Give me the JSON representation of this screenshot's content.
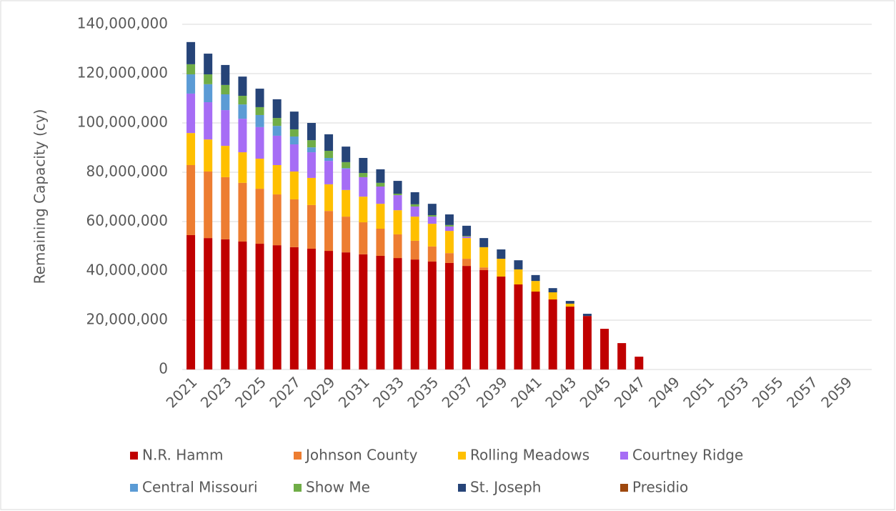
{
  "chart_data": {
    "type": "stacked_bar",
    "y_label": "Remaining Capacity (cy)",
    "categories": [
      "2021",
      null,
      "2023",
      null,
      "2025",
      null,
      "2027",
      null,
      "2029",
      null,
      "2031",
      null,
      "2033",
      null,
      "2035",
      null,
      "2037",
      null,
      "2039",
      null,
      "2041",
      null,
      "2043",
      null,
      "2045",
      null,
      "2047",
      null,
      "2049",
      null,
      "2051",
      null,
      "2053",
      null,
      "2055",
      null,
      "2057",
      null,
      "2059",
      null
    ],
    "series": [
      {
        "name": "N.R. Hamm",
        "color": "#c00000",
        "values": [
          54500000,
          53300000,
          52800000,
          51900000,
          51000000,
          50400000,
          49600000,
          49000000,
          48100000,
          47500000,
          46700000,
          46100000,
          45200000,
          44600000,
          43800000,
          43200000,
          42000000,
          40300000,
          37700000,
          34500000,
          31600000,
          28400000,
          25500000,
          21700000,
          16500000,
          10700000,
          5200000,
          0,
          0,
          0,
          0,
          0,
          0,
          0,
          0,
          0,
          0,
          0,
          0,
          0
        ]
      },
      {
        "name": "Johnson County",
        "color": "#ed7d31",
        "values": [
          28400000,
          27000000,
          25200000,
          23800000,
          22300000,
          20600000,
          19400000,
          17700000,
          16200000,
          14500000,
          13000000,
          11000000,
          9600000,
          7600000,
          6100000,
          4000000,
          2900000,
          1100000,
          0,
          0,
          0,
          0,
          0,
          0,
          0,
          0,
          0,
          0,
          0,
          0,
          0,
          0,
          0,
          0,
          0,
          0,
          0,
          0,
          0,
          0
        ]
      },
      {
        "name": "Rolling Meadows",
        "color": "#ffc000",
        "values": [
          13000000,
          13000000,
          12700000,
          12400000,
          12200000,
          11900000,
          11300000,
          11000000,
          10800000,
          10800000,
          10400000,
          10100000,
          9800000,
          9800000,
          9200000,
          9000000,
          8400000,
          8200000,
          7200000,
          6100000,
          4300000,
          2900000,
          1200000,
          0,
          0,
          0,
          0,
          0,
          0,
          0,
          0,
          0,
          0,
          0,
          0,
          0,
          0,
          0,
          0,
          0
        ]
      },
      {
        "name": "Courtney Ridge",
        "color": "#a66df5",
        "values": [
          16000000,
          15100000,
          14500000,
          13600000,
          12800000,
          11900000,
          11000000,
          10400000,
          9500000,
          8600000,
          7900000,
          7000000,
          6100000,
          4100000,
          2900000,
          1800000,
          600000,
          0,
          0,
          0,
          0,
          0,
          0,
          0,
          0,
          0,
          0,
          0,
          0,
          0,
          0,
          0,
          0,
          0,
          0,
          0,
          0,
          0,
          0,
          0
        ]
      },
      {
        "name": "Central Missouri",
        "color": "#5b9bd5",
        "values": [
          7800000,
          7300000,
          6400000,
          5800000,
          4900000,
          4000000,
          3200000,
          2000000,
          1200000,
          300000,
          0,
          0,
          0,
          0,
          0,
          0,
          0,
          0,
          0,
          0,
          0,
          0,
          0,
          0,
          0,
          0,
          0,
          0,
          0,
          0,
          0,
          0,
          0,
          0,
          0,
          0,
          0,
          0,
          0,
          0
        ]
      },
      {
        "name": "Show Me",
        "color": "#70ad47",
        "values": [
          4100000,
          4000000,
          3800000,
          3500000,
          3200000,
          3200000,
          2900000,
          2900000,
          2900000,
          2400000,
          1700000,
          1500000,
          600000,
          900000,
          600000,
          600000,
          300000,
          0,
          0,
          0,
          0,
          0,
          0,
          0,
          0,
          0,
          0,
          0,
          0,
          0,
          0,
          0,
          0,
          0,
          0,
          0,
          0,
          0,
          0,
          0
        ]
      },
      {
        "name": "St. Joseph",
        "color": "#264478",
        "values": [
          9000000,
          8400000,
          8100000,
          7800000,
          7500000,
          7600000,
          7200000,
          7000000,
          6700000,
          6300000,
          6100000,
          5500000,
          5200000,
          4900000,
          4600000,
          4300000,
          4100000,
          3700000,
          3800000,
          3700000,
          2400000,
          1700000,
          1100000,
          900000,
          0,
          0,
          0,
          0,
          0,
          0,
          0,
          0,
          0,
          0,
          0,
          0,
          0,
          0,
          0,
          0
        ]
      },
      {
        "name": "Presidio",
        "color": "#9e480e",
        "values": [
          0,
          0,
          0,
          0,
          0,
          0,
          0,
          0,
          0,
          0,
          0,
          0,
          0,
          0,
          0,
          0,
          0,
          0,
          0,
          0,
          0,
          0,
          0,
          0,
          0,
          0,
          0,
          0,
          0,
          0,
          0,
          0,
          0,
          0,
          0,
          0,
          0,
          0,
          0,
          0
        ]
      }
    ],
    "ylim": [
      0,
      140000000
    ],
    "yticks": [
      0,
      {
        "value": 20000000,
        "label": "20,000,000"
      },
      {
        "value": 40000000,
        "label": "40,000,000"
      },
      {
        "value": 60000000,
        "label": "60,000,000"
      },
      {
        "value": 80000000,
        "label": "80,000,000"
      },
      {
        "value": 100000000,
        "label": "100,000,000"
      },
      {
        "value": 120000000,
        "label": "120,000,000"
      },
      {
        "value": 140000000,
        "label": "140,000,000"
      }
    ],
    "grid": true,
    "legend": "bottom"
  }
}
